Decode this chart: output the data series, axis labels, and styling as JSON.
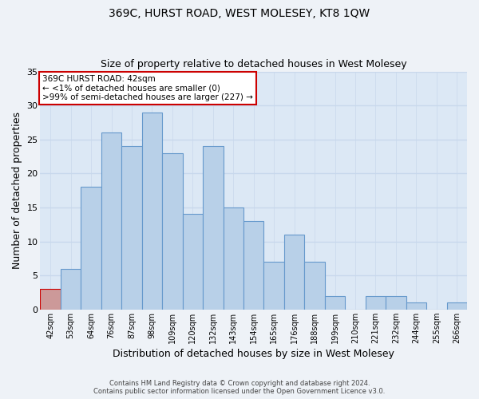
{
  "title": "369C, HURST ROAD, WEST MOLESEY, KT8 1QW",
  "subtitle": "Size of property relative to detached houses in West Molesey",
  "xlabel": "Distribution of detached houses by size in West Molesey",
  "ylabel": "Number of detached properties",
  "bar_color": "#b8d0e8",
  "bar_edge_color": "#6699cc",
  "categories": [
    "42sqm",
    "53sqm",
    "64sqm",
    "76sqm",
    "87sqm",
    "98sqm",
    "109sqm",
    "120sqm",
    "132sqm",
    "143sqm",
    "154sqm",
    "165sqm",
    "176sqm",
    "188sqm",
    "199sqm",
    "210sqm",
    "221sqm",
    "232sqm",
    "244sqm",
    "255sqm",
    "266sqm"
  ],
  "values": [
    3,
    6,
    18,
    26,
    24,
    29,
    23,
    14,
    24,
    15,
    13,
    7,
    11,
    7,
    2,
    0,
    2,
    2,
    1,
    0,
    1
  ],
  "ylim": [
    0,
    35
  ],
  "yticks": [
    0,
    5,
    10,
    15,
    20,
    25,
    30,
    35
  ],
  "annotation_title": "369C HURST ROAD: 42sqm",
  "annotation_line1": "← <1% of detached houses are smaller (0)",
  "annotation_line2": ">99% of semi-detached houses are larger (227) →",
  "annotation_box_color": "#ffffff",
  "annotation_box_edge_color": "#cc0000",
  "highlight_bar_index": 0,
  "highlight_bar_color": "#cc9999",
  "highlight_bar_edge_color": "#cc0000",
  "footer_line1": "Contains HM Land Registry data © Crown copyright and database right 2024.",
  "footer_line2": "Contains public sector information licensed under the Open Government Licence v3.0.",
  "background_color": "#eef2f7",
  "grid_color": "#c8d8ec",
  "plot_bg_color": "#dce8f5"
}
